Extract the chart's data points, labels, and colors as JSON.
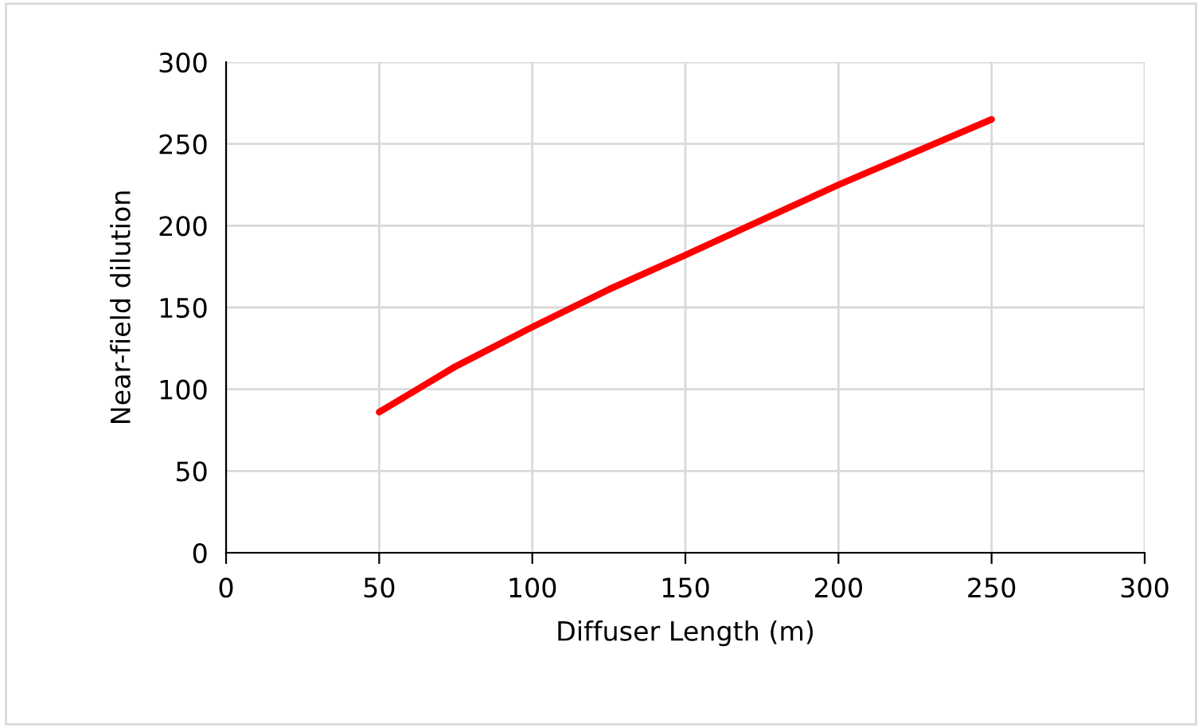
{
  "chart_data": {
    "type": "line",
    "xlabel": "Diffuser Length (m)",
    "ylabel": "Near-field dilution",
    "x": [
      50,
      75,
      100,
      125,
      150,
      200,
      250
    ],
    "series": [
      {
        "color": "#ff0000",
        "values": [
          86,
          114,
          138,
          161,
          182,
          225,
          265
        ]
      }
    ],
    "xlim": [
      0,
      300
    ],
    "xticks": [
      0,
      50,
      100,
      150,
      200,
      250,
      300
    ],
    "ylim": [
      0,
      300
    ],
    "yticks": [
      0,
      50,
      100,
      150,
      200,
      250,
      300
    ],
    "grid": true,
    "marker": "none",
    "line_style": "solid",
    "legend": false
  }
}
